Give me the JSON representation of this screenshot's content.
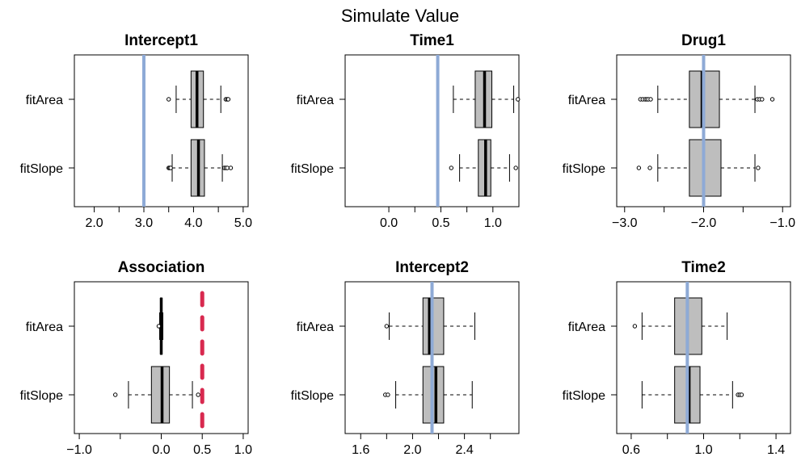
{
  "page_title": "Simulate Value",
  "colors": {
    "reference_line_blue": "#8eaad6",
    "reference_line_red": "#d8294f",
    "box_fill": "#bebebe",
    "outline": "#000000"
  },
  "chart_data": [
    {
      "type": "boxplot",
      "orientation": "horizontal",
      "title": "Intercept1",
      "categories": [
        "fitArea",
        "fitSlope"
      ],
      "xlim": [
        1.6,
        5.1
      ],
      "xticks": [
        2.0,
        3.0,
        4.0,
        5.0
      ],
      "xtick_labels": [
        "2.0",
        "3.0",
        "4.0",
        "5.0"
      ],
      "minor_ticks": [
        2.5,
        3.5,
        4.5
      ],
      "reference": {
        "value": 3.0,
        "color": "#8eaad6",
        "style": "solid"
      },
      "boxes": [
        {
          "category": "fitArea",
          "whisker_low": 3.65,
          "q1": 3.95,
          "median": 4.07,
          "q3": 4.2,
          "whisker_high": 4.55,
          "outliers": [
            3.5,
            4.65,
            4.68,
            4.7
          ]
        },
        {
          "category": "fitSlope",
          "whisker_low": 3.57,
          "q1": 3.95,
          "median": 4.1,
          "q3": 4.22,
          "whisker_high": 4.58,
          "outliers": [
            3.5,
            3.52,
            3.54,
            4.62,
            4.65,
            4.68,
            4.75
          ]
        }
      ]
    },
    {
      "type": "boxplot",
      "orientation": "horizontal",
      "title": "Time1",
      "categories": [
        "fitArea",
        "fitSlope"
      ],
      "xlim": [
        -0.42,
        1.25
      ],
      "xticks": [
        0.0,
        0.5,
        1.0
      ],
      "xtick_labels": [
        "0.0",
        "0.5",
        "1.0"
      ],
      "minor_ticks": [
        0.25,
        0.75
      ],
      "reference": {
        "value": 0.47,
        "color": "#8eaad6",
        "style": "solid"
      },
      "boxes": [
        {
          "category": "fitArea",
          "whisker_low": 0.62,
          "q1": 0.83,
          "median": 0.92,
          "q3": 0.99,
          "whisker_high": 1.2,
          "outliers": [
            1.24
          ]
        },
        {
          "category": "fitSlope",
          "whisker_low": 0.68,
          "q1": 0.86,
          "median": 0.93,
          "q3": 0.98,
          "whisker_high": 1.16,
          "outliers": [
            0.6,
            1.22
          ]
        }
      ]
    },
    {
      "type": "boxplot",
      "orientation": "horizontal",
      "title": "Drug1",
      "categories": [
        "fitArea",
        "fitSlope"
      ],
      "xlim": [
        -3.1,
        -0.9
      ],
      "xticks": [
        -3.0,
        -2.0,
        -1.0
      ],
      "xtick_labels": [
        "−3.0",
        "−2.0",
        "−1.0"
      ],
      "minor_ticks": [
        -2.5,
        -1.5
      ],
      "reference": {
        "value": -2.0,
        "color": "#8eaad6",
        "style": "solid"
      },
      "boxes": [
        {
          "category": "fitArea",
          "whisker_low": -2.58,
          "q1": -2.18,
          "median": -2.02,
          "q3": -1.8,
          "whisker_high": -1.35,
          "outliers": [
            -2.8,
            -2.77,
            -2.74,
            -2.72,
            -2.7,
            -2.67,
            -1.32,
            -1.29,
            -1.26,
            -1.13
          ]
        },
        {
          "category": "fitSlope",
          "whisker_low": -2.58,
          "q1": -2.18,
          "median": -2.0,
          "q3": -1.78,
          "whisker_high": -1.35,
          "outliers": [
            -2.82,
            -2.68,
            -1.31
          ]
        }
      ]
    },
    {
      "type": "boxplot",
      "orientation": "horizontal",
      "title": "Association",
      "categories": [
        "fitArea",
        "fitSlope"
      ],
      "xlim": [
        -1.06,
        1.06
      ],
      "xticks": [
        -1.0,
        0.0,
        0.5,
        1.0
      ],
      "xtick_labels": [
        "−1.0",
        "0.0",
        "0.5",
        "1.0"
      ],
      "minor_ticks": [
        -0.5
      ],
      "reference": {
        "value": 0.5,
        "color": "#d8294f",
        "style": "dashed"
      },
      "boxes": [
        {
          "category": "fitArea",
          "whisker_low": -0.02,
          "q1": -0.01,
          "median": 0.0,
          "q3": 0.01,
          "whisker_high": 0.02,
          "outliers": [
            -0.03
          ]
        },
        {
          "category": "fitSlope",
          "whisker_low": -0.4,
          "q1": -0.12,
          "median": 0.01,
          "q3": 0.1,
          "whisker_high": 0.38,
          "outliers": [
            -0.56,
            0.45
          ]
        }
      ]
    },
    {
      "type": "boxplot",
      "orientation": "horizontal",
      "title": "Intercept2",
      "categories": [
        "fitArea",
        "fitSlope"
      ],
      "xlim": [
        1.48,
        2.82
      ],
      "xticks": [
        1.6,
        2.0,
        2.4
      ],
      "xtick_labels": [
        "1.6",
        "2.0",
        "2.4"
      ],
      "minor_ticks": [
        1.8,
        2.2,
        2.6
      ],
      "reference": {
        "value": 2.15,
        "color": "#8eaad6",
        "style": "solid"
      },
      "boxes": [
        {
          "category": "fitArea",
          "whisker_low": 1.82,
          "q1": 2.08,
          "median": 2.13,
          "q3": 2.24,
          "whisker_high": 2.48,
          "outliers": [
            1.8
          ]
        },
        {
          "category": "fitSlope",
          "whisker_low": 1.87,
          "q1": 2.08,
          "median": 2.18,
          "q3": 2.24,
          "whisker_high": 2.46,
          "outliers": [
            1.79,
            1.81
          ]
        }
      ]
    },
    {
      "type": "boxplot",
      "orientation": "horizontal",
      "title": "Time2",
      "categories": [
        "fitArea",
        "fitSlope"
      ],
      "xlim": [
        0.52,
        1.48
      ],
      "xticks": [
        0.6,
        1.0,
        1.4
      ],
      "xtick_labels": [
        "0.6",
        "1.0",
        "1.4"
      ],
      "minor_ticks": [
        0.8,
        1.2
      ],
      "reference": {
        "value": 0.91,
        "color": "#8eaad6",
        "style": "solid"
      },
      "boxes": [
        {
          "category": "fitArea",
          "whisker_low": 0.66,
          "q1": 0.84,
          "median": 0.91,
          "q3": 0.99,
          "whisker_high": 1.13,
          "outliers": [
            0.62
          ]
        },
        {
          "category": "fitSlope",
          "whisker_low": 0.66,
          "q1": 0.84,
          "median": 0.92,
          "q3": 0.98,
          "whisker_high": 1.16,
          "outliers": [
            1.19,
            1.2,
            1.21
          ]
        }
      ]
    }
  ]
}
